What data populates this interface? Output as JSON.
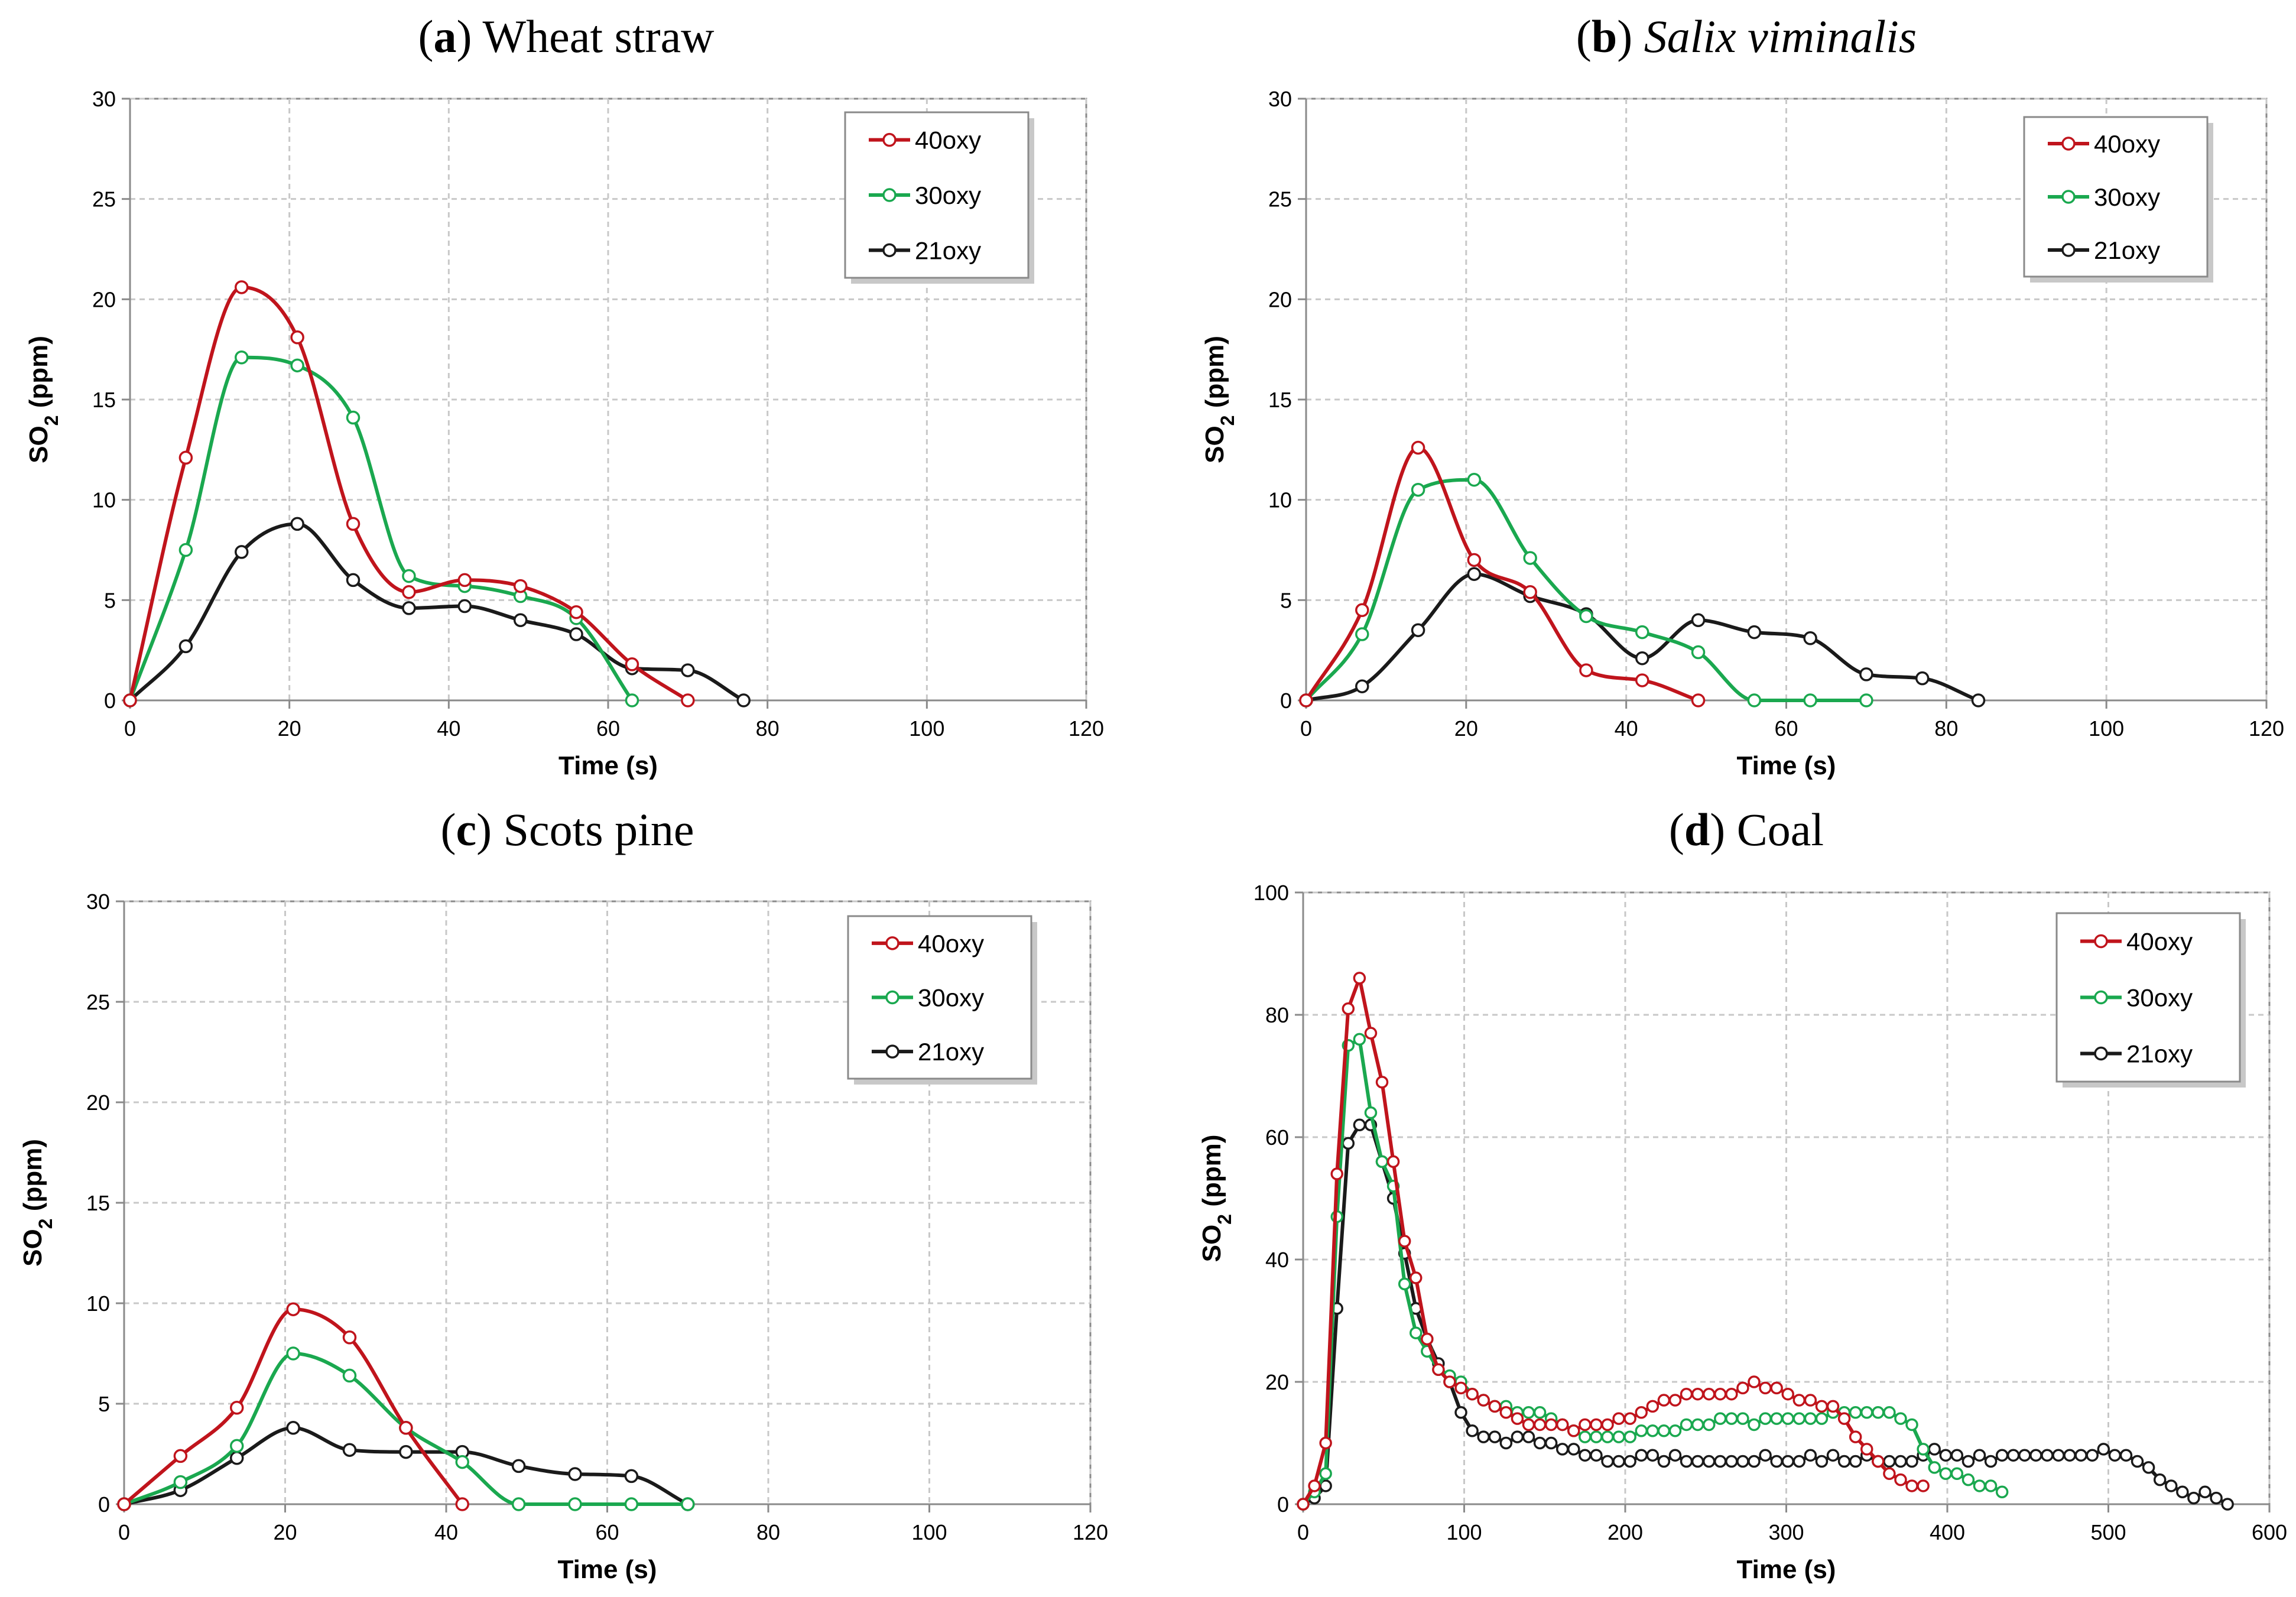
{
  "chart_data": [
    {
      "type": "line",
      "panel": "a",
      "title_label": "a",
      "title_text": "Wheat straw",
      "title_italic": false,
      "xlabel": "Time (s)",
      "ylabel": "SO2 (ppm)",
      "xlim": [
        0,
        120
      ],
      "ylim": [
        0,
        30
      ],
      "xticks": [
        "0",
        "20",
        "40",
        "60",
        "80",
        "100",
        "120"
      ],
      "yticks": [
        "0",
        "5",
        "10",
        "15",
        "20",
        "25",
        "30"
      ],
      "grid": true,
      "legend_position": "top-right",
      "series": [
        {
          "name": "40oxy",
          "color": "#c0141c",
          "x": [
            0,
            7,
            14,
            21,
            28,
            35,
            42,
            49,
            56,
            63,
            70
          ],
          "y": [
            0,
            12.1,
            20.6,
            18.1,
            8.8,
            5.4,
            6.0,
            5.7,
            4.4,
            1.8,
            0
          ]
        },
        {
          "name": "30oxy",
          "color": "#1aa84f",
          "x": [
            0,
            7,
            14,
            21,
            28,
            35,
            42,
            49,
            56,
            63
          ],
          "y": [
            0,
            7.5,
            17.1,
            16.7,
            14.1,
            6.2,
            5.7,
            5.2,
            4.1,
            0
          ]
        },
        {
          "name": "21oxy",
          "color": "#1a1a1a",
          "x": [
            0,
            7,
            14,
            21,
            28,
            35,
            42,
            49,
            56,
            63,
            70,
            77
          ],
          "y": [
            0,
            2.7,
            7.4,
            8.8,
            6.0,
            4.6,
            4.7,
            4.0,
            3.3,
            1.6,
            1.5,
            0
          ]
        }
      ]
    },
    {
      "type": "line",
      "panel": "b",
      "title_label": "b",
      "title_text": "Salix viminalis",
      "title_italic": true,
      "xlabel": "Time (s)",
      "ylabel": "SO2 (ppm)",
      "xlim": [
        0,
        120
      ],
      "ylim": [
        0,
        30
      ],
      "xticks": [
        "0",
        "20",
        "40",
        "60",
        "80",
        "100",
        "120"
      ],
      "yticks": [
        "0",
        "5",
        "10",
        "15",
        "20",
        "25",
        "30"
      ],
      "grid": true,
      "legend_position": "top-right",
      "series": [
        {
          "name": "40oxy",
          "color": "#c0141c",
          "x": [
            0,
            7,
            14,
            21,
            28,
            35,
            42,
            49
          ],
          "y": [
            0,
            4.5,
            12.6,
            7.0,
            5.4,
            1.5,
            1.0,
            0
          ]
        },
        {
          "name": "30oxy",
          "color": "#1aa84f",
          "x": [
            0,
            7,
            14,
            21,
            28,
            35,
            42,
            49,
            56,
            63,
            70
          ],
          "y": [
            0,
            3.3,
            10.5,
            11.0,
            7.1,
            4.2,
            3.4,
            2.4,
            0,
            0,
            0
          ]
        },
        {
          "name": "21oxy",
          "color": "#1a1a1a",
          "x": [
            0,
            7,
            14,
            21,
            28,
            35,
            42,
            49,
            56,
            63,
            70,
            77,
            84
          ],
          "y": [
            0,
            0.7,
            3.5,
            6.3,
            5.2,
            4.3,
            2.1,
            4.0,
            3.4,
            3.1,
            1.3,
            1.1,
            0
          ]
        }
      ]
    },
    {
      "type": "line",
      "panel": "c",
      "title_label": "c",
      "title_text": "Scots pine",
      "title_italic": false,
      "xlabel": "Time (s)",
      "ylabel": "SO2 (ppm)",
      "xlim": [
        0,
        120
      ],
      "ylim": [
        0,
        30
      ],
      "xticks": [
        "0",
        "20",
        "40",
        "60",
        "80",
        "100",
        "120"
      ],
      "yticks": [
        "0",
        "5",
        "10",
        "15",
        "20",
        "25",
        "30"
      ],
      "grid": true,
      "legend_position": "top-right",
      "series": [
        {
          "name": "40oxy",
          "color": "#c0141c",
          "x": [
            0,
            7,
            14,
            21,
            28,
            35,
            42
          ],
          "y": [
            0,
            2.4,
            4.8,
            9.7,
            8.3,
            3.8,
            0
          ]
        },
        {
          "name": "30oxy",
          "color": "#1aa84f",
          "x": [
            0,
            7,
            14,
            21,
            28,
            35,
            42,
            49,
            56,
            63,
            70
          ],
          "y": [
            0,
            1.1,
            2.9,
            7.5,
            6.4,
            3.8,
            2.1,
            0,
            0,
            0,
            0
          ]
        },
        {
          "name": "21oxy",
          "color": "#1a1a1a",
          "x": [
            0,
            7,
            14,
            21,
            28,
            35,
            42,
            49,
            56,
            63,
            70
          ],
          "y": [
            0,
            0.7,
            2.3,
            3.8,
            2.7,
            2.6,
            2.6,
            1.9,
            1.5,
            1.4,
            0
          ]
        }
      ]
    },
    {
      "type": "line",
      "panel": "d",
      "title_label": "d",
      "title_text": "Coal",
      "title_italic": false,
      "xlabel": "Time (s)",
      "ylabel": "SO2 (ppm)",
      "xlim": [
        0,
        600
      ],
      "ylim": [
        0,
        100
      ],
      "xticks": [
        "0",
        "100",
        "200",
        "300",
        "400",
        "500",
        "600"
      ],
      "yticks": [
        "0",
        "20",
        "40",
        "60",
        "80",
        "100"
      ],
      "grid": true,
      "legend_position": "top-right",
      "series": [
        {
          "name": "40oxy",
          "color": "#c0141c",
          "x": [
            0,
            7,
            14,
            21,
            28,
            35,
            42,
            49,
            56,
            63,
            70,
            77,
            84,
            91,
            98,
            105,
            112,
            119,
            126,
            133,
            140,
            147,
            154,
            161,
            168,
            175,
            182,
            189,
            196,
            203,
            210,
            217,
            224,
            231,
            238,
            245,
            252,
            259,
            266,
            273,
            280,
            287,
            294,
            301,
            308,
            315,
            322,
            329,
            336,
            343,
            350,
            357,
            364,
            371,
            378,
            385
          ],
          "y": [
            0,
            3,
            10,
            54,
            81,
            86,
            77,
            69,
            56,
            43,
            37,
            27,
            22,
            20,
            19,
            18,
            17,
            16,
            15,
            14,
            13,
            13,
            13,
            13,
            12,
            13,
            13,
            13,
            14,
            14,
            15,
            16,
            17,
            17,
            18,
            18,
            18,
            18,
            18,
            19,
            20,
            19,
            19,
            18,
            17,
            17,
            16,
            16,
            14,
            11,
            9,
            7,
            5,
            4,
            3,
            3
          ]
        },
        {
          "name": "30oxy",
          "color": "#1aa84f",
          "x": [
            0,
            7,
            14,
            21,
            28,
            35,
            42,
            49,
            56,
            63,
            70,
            77,
            84,
            91,
            98,
            105,
            112,
            119,
            126,
            133,
            140,
            147,
            154,
            161,
            168,
            175,
            182,
            189,
            196,
            203,
            210,
            217,
            224,
            231,
            238,
            245,
            252,
            259,
            266,
            273,
            280,
            287,
            294,
            301,
            308,
            315,
            322,
            329,
            336,
            343,
            350,
            357,
            364,
            371,
            378,
            385,
            392,
            399,
            406,
            413,
            420,
            427,
            434
          ],
          "y": [
            0,
            2,
            5,
            47,
            75,
            76,
            64,
            56,
            52,
            36,
            28,
            25,
            22,
            21,
            20,
            18,
            17,
            16,
            16,
            15,
            15,
            15,
            14,
            13,
            12,
            11,
            11,
            11,
            11,
            11,
            12,
            12,
            12,
            12,
            13,
            13,
            13,
            14,
            14,
            14,
            13,
            14,
            14,
            14,
            14,
            14,
            14,
            15,
            15,
            15,
            15,
            15,
            15,
            14,
            13,
            9,
            6,
            5,
            5,
            4,
            3,
            3,
            2
          ]
        },
        {
          "name": "21oxy",
          "color": "#1a1a1a",
          "x": [
            0,
            7,
            14,
            21,
            28,
            35,
            42,
            49,
            56,
            63,
            70,
            77,
            84,
            91,
            98,
            105,
            112,
            119,
            126,
            133,
            140,
            147,
            154,
            161,
            168,
            175,
            182,
            189,
            196,
            203,
            210,
            217,
            224,
            231,
            238,
            245,
            252,
            259,
            266,
            273,
            280,
            287,
            294,
            301,
            308,
            315,
            322,
            329,
            336,
            343,
            350,
            357,
            364,
            371,
            378,
            385,
            392,
            399,
            406,
            413,
            420,
            427,
            434,
            441,
            448,
            455,
            462,
            469,
            476,
            483,
            490,
            497,
            504,
            511,
            518,
            525,
            532,
            539,
            546,
            553,
            560,
            567,
            574
          ],
          "y": [
            0,
            1,
            3,
            32,
            59,
            62,
            62,
            56,
            50,
            41,
            32,
            27,
            23,
            20,
            15,
            12,
            11,
            11,
            10,
            11,
            11,
            10,
            10,
            9,
            9,
            8,
            8,
            7,
            7,
            7,
            8,
            8,
            7,
            8,
            7,
            7,
            7,
            7,
            7,
            7,
            7,
            8,
            7,
            7,
            7,
            8,
            7,
            8,
            7,
            7,
            8,
            7,
            7,
            7,
            7,
            8,
            9,
            8,
            8,
            7,
            8,
            7,
            8,
            8,
            8,
            8,
            8,
            8,
            8,
            8,
            8,
            9,
            8,
            8,
            7,
            6,
            4,
            3,
            2,
            1,
            2,
            1,
            0
          ]
        }
      ]
    }
  ]
}
